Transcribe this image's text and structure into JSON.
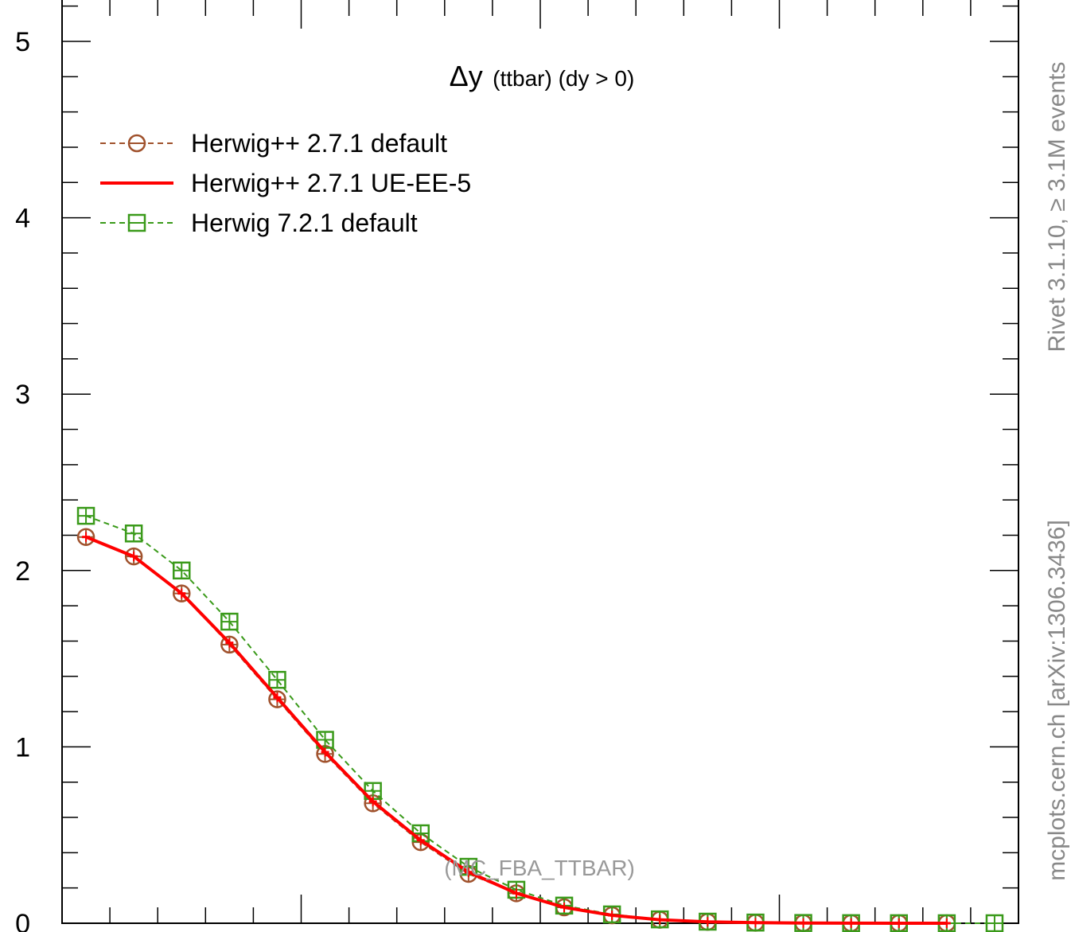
{
  "chart_data": {
    "type": "line",
    "title_symbol": "Δy",
    "title_rest": "(ttbar) (dy > 0)",
    "xlim": [
      0,
      2.0
    ],
    "ylim": [
      0,
      5.2
    ],
    "y_tick_labels": [
      "0",
      "1",
      "2",
      "3",
      "4",
      "5"
    ],
    "x": [
      0.05,
      0.15,
      0.25,
      0.35,
      0.45,
      0.55,
      0.65,
      0.75,
      0.85,
      0.95,
      1.05,
      1.15,
      1.25,
      1.35,
      1.45,
      1.55,
      1.65,
      1.75,
      1.85,
      1.95
    ],
    "series": [
      {
        "name": "Herwig++ 2.7.1 default",
        "color": "#a0522d",
        "style": "dashed",
        "marker": "circle",
        "values": [
          2.19,
          2.08,
          1.87,
          1.58,
          1.27,
          0.96,
          0.68,
          0.46,
          0.28,
          0.17,
          0.09,
          0.045,
          0.02,
          0.008,
          0.003,
          0.001,
          0.0005,
          0.0002,
          0.0001,
          null
        ]
      },
      {
        "name": "Herwig++ 2.7.1 UE-EE-5",
        "color": "#ff0000",
        "style": "solid",
        "marker": "none",
        "values": [
          2.19,
          2.08,
          1.87,
          1.59,
          1.28,
          0.97,
          0.69,
          0.47,
          0.29,
          0.17,
          0.09,
          0.045,
          0.02,
          0.008,
          0.003,
          0.001,
          0.0005,
          0.0002,
          0.0001,
          null
        ]
      },
      {
        "name": "Herwig 7.2.1 default",
        "color": "#3a9a1a",
        "style": "dashed",
        "marker": "square",
        "values": [
          2.31,
          2.21,
          2.0,
          1.71,
          1.38,
          1.04,
          0.75,
          0.51,
          0.32,
          0.19,
          0.1,
          0.05,
          0.022,
          0.009,
          0.004,
          0.0015,
          0.0006,
          0.0003,
          0.0001,
          5e-05
        ]
      }
    ],
    "watermark": "(MC_FBA_TTBAR)",
    "right_label_top": "Rivet 3.1.10, ≥ 3.1M events",
    "right_label_bottom": "mcplots.cern.ch [arXiv:1306.3436]",
    "grid": false,
    "legend_position": "top-left"
  }
}
